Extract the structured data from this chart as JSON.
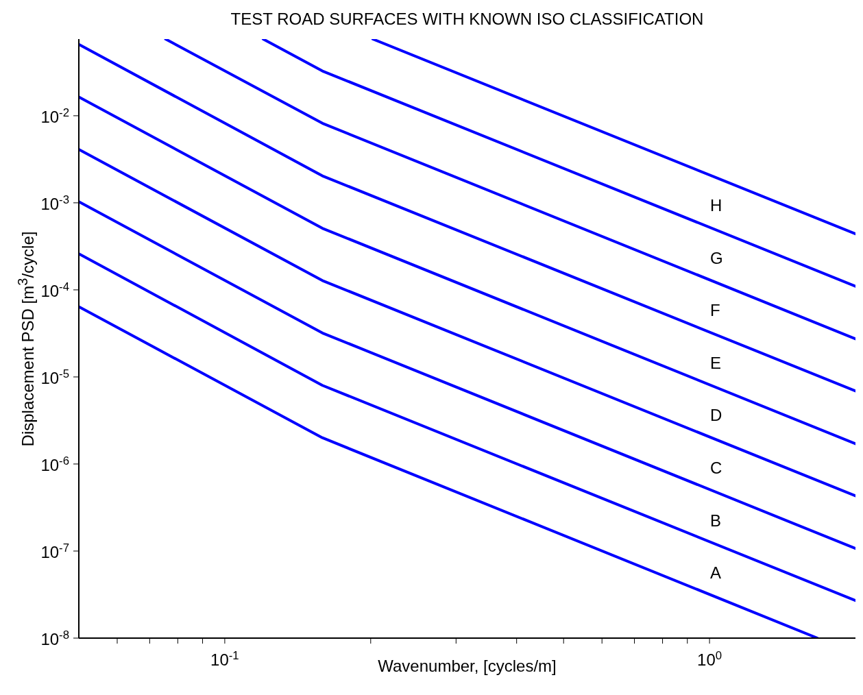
{
  "chart_data": {
    "type": "line",
    "title": "TEST ROAD SURFACES WITH KNOWN ISO CLASSIFICATION",
    "xlabel": "Wavenumber, [cycles/m]",
    "ylabel": "Displacement PSD [m$^{3}$/cycle]",
    "log": "xy",
    "grid": false,
    "legend": false,
    "marker": "none",
    "line_style": "solid",
    "xlim": [
      0.05,
      2
    ],
    "ylim": [
      1e-08,
      0.076
    ],
    "xticks": [
      {
        "value": 0.06,
        "label": null
      },
      {
        "value": 0.07,
        "label": null
      },
      {
        "value": 0.08,
        "label": null
      },
      {
        "value": 0.09,
        "label": null
      },
      {
        "value": 0.1,
        "label": "10$^{-1}$"
      },
      {
        "value": 0.2,
        "label": null
      },
      {
        "value": 0.3,
        "label": null
      },
      {
        "value": 0.4,
        "label": null
      },
      {
        "value": 0.5,
        "label": null
      },
      {
        "value": 0.6,
        "label": null
      },
      {
        "value": 0.7,
        "label": null
      },
      {
        "value": 0.8,
        "label": null
      },
      {
        "value": 0.9,
        "label": null
      },
      {
        "value": 1,
        "label": "10$^{0}$"
      }
    ],
    "yticks": [
      {
        "value": 1e-08,
        "label": "10$^{-8}$"
      },
      {
        "value": 1e-07,
        "label": "10$^{-7}$"
      },
      {
        "value": 1e-06,
        "label": "10$^{-6}$"
      },
      {
        "value": 1e-05,
        "label": "10$^{-5}$"
      },
      {
        "value": 0.0001,
        "label": "10$^{-4}$"
      },
      {
        "value": 0.001,
        "label": "10$^{-3}$"
      },
      {
        "value": 0.01,
        "label": "10$^{-2}$"
      }
    ],
    "series": [
      {
        "color": "#0000ff",
        "x": [
          0.05,
          0.159,
          1.67
        ],
        "values": [
          6.4e-05,
          2e-06,
          1e-08
        ]
      },
      {
        "color": "#0000ff",
        "x": [
          0.05,
          0.159,
          2
        ],
        "values": [
          0.00026,
          8e-06,
          2.7e-08
        ]
      },
      {
        "color": "#0000ff",
        "x": [
          0.05,
          0.159,
          2
        ],
        "values": [
          0.00103,
          3.2e-05,
          1.07e-07
        ]
      },
      {
        "color": "#0000ff",
        "x": [
          0.05,
          0.159,
          2
        ],
        "values": [
          0.0041,
          0.000128,
          4.3e-07
        ]
      },
      {
        "color": "#0000ff",
        "x": [
          0.05,
          0.159,
          2
        ],
        "values": [
          0.0164,
          0.00051,
          1.71e-06
        ]
      },
      {
        "color": "#0000ff",
        "x": [
          0.05,
          0.159,
          2
        ],
        "values": [
          0.066,
          0.00204,
          6.9e-06
        ]
      },
      {
        "color": "#0000ff",
        "x": [
          0.0755,
          0.159,
          2
        ],
        "values": [
          0.076,
          0.0082,
          2.74e-05
        ]
      },
      {
        "color": "#0000ff",
        "x": [
          0.12,
          0.159,
          2
        ],
        "values": [
          0.076,
          0.0327,
          0.00011
        ]
      },
      {
        "color": "#0000ff",
        "x": [
          0.202,
          2
        ],
        "values": [
          0.076,
          0.00044
        ]
      }
    ],
    "annotations": [
      "H",
      "G",
      "F",
      "E",
      "D",
      "C",
      "B",
      "A"
    ]
  }
}
